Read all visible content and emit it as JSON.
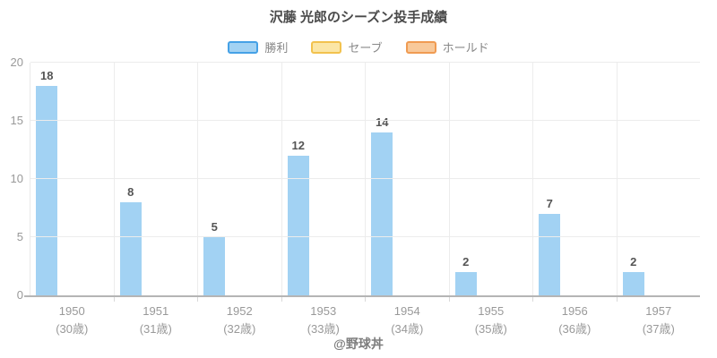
{
  "title": "沢藤 光郎のシーズン投手成績",
  "footer": "@野球丼",
  "legend": {
    "items": [
      {
        "label": "勝利",
        "fill": "#A2D2F3",
        "border": "#45A1E6"
      },
      {
        "label": "セーブ",
        "fill": "#FBE6A6",
        "border": "#F2C24E"
      },
      {
        "label": "ホールド",
        "fill": "#F8C99A",
        "border": "#F09B52"
      }
    ]
  },
  "chart_data": {
    "type": "bar",
    "title": "沢藤 光郎のシーズン投手成績",
    "categories": [
      "1950",
      "1951",
      "1952",
      "1953",
      "1954",
      "1955",
      "1956",
      "1957"
    ],
    "category_sublabels": [
      "(30歳)",
      "(31歳)",
      "(32歳)",
      "(33歳)",
      "(34歳)",
      "(35歳)",
      "(36歳)",
      "(37歳)"
    ],
    "series": [
      {
        "name": "勝利",
        "values": [
          18,
          8,
          5,
          12,
          14,
          2,
          7,
          2
        ],
        "color": "#A2D2F3",
        "border": "#45A1E6"
      },
      {
        "name": "セーブ",
        "values": [
          0,
          0,
          0,
          0,
          0,
          0,
          0,
          0
        ],
        "color": "#FBE6A6",
        "border": "#F2C24E"
      },
      {
        "name": "ホールド",
        "values": [
          0,
          0,
          0,
          0,
          0,
          0,
          0,
          0
        ],
        "color": "#F8C99A",
        "border": "#F09B52"
      }
    ],
    "ylabel": "",
    "xlabel": "",
    "ylim": [
      0,
      20
    ],
    "yticks": [
      0,
      5,
      10,
      15,
      20
    ],
    "grid": true,
    "legend_position": "top",
    "value_labels": "shown above 勝利 bars",
    "watermark": "@野球丼"
  }
}
